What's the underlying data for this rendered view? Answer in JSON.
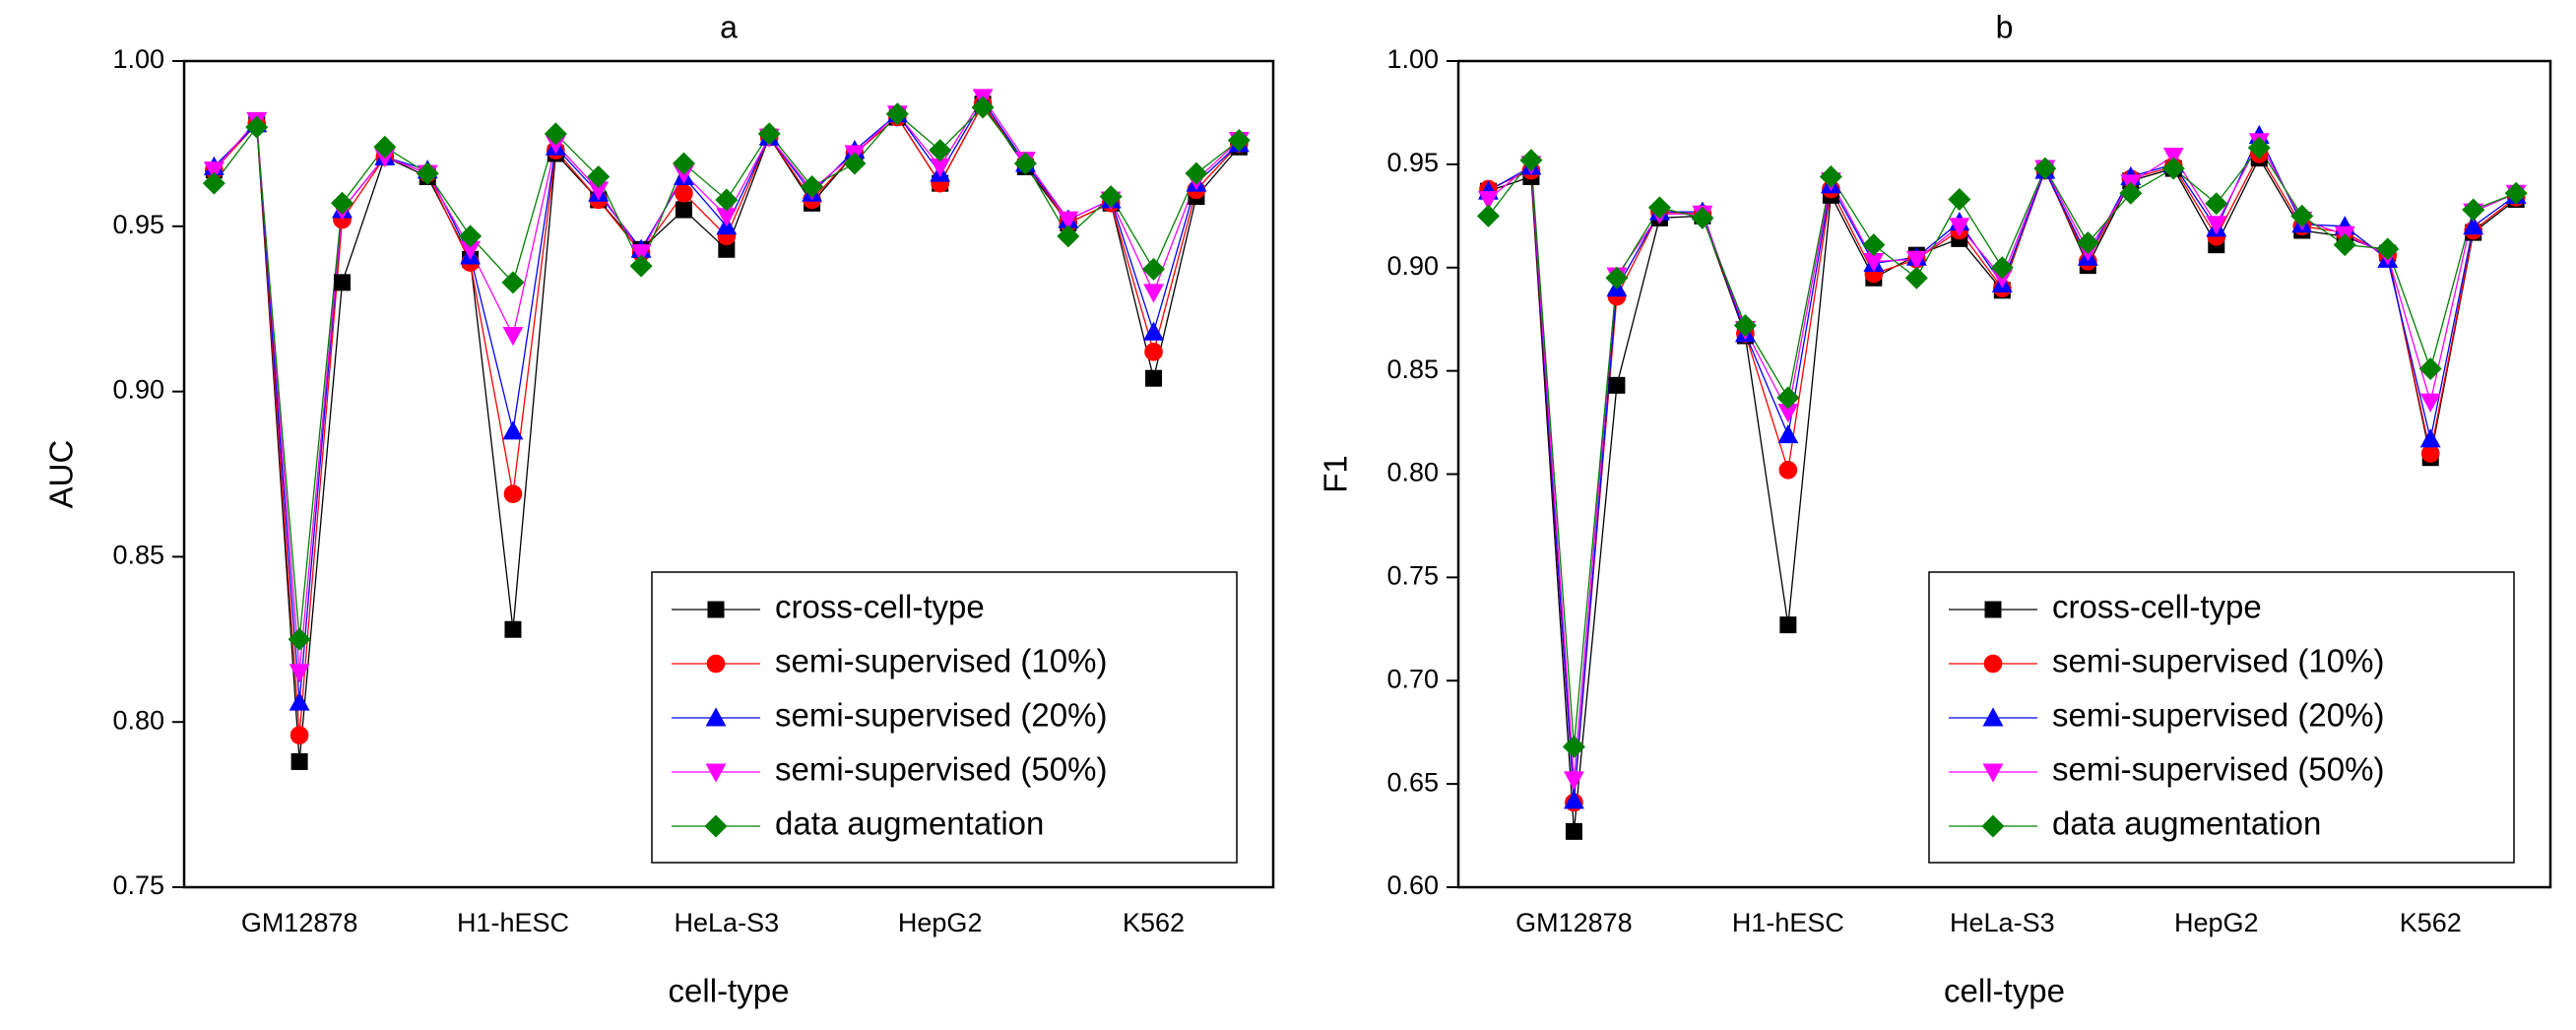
{
  "chart_data": [
    {
      "type": "line",
      "title": "a",
      "xlabel": "cell-type",
      "ylabel": "AUC",
      "categories": [
        null,
        null,
        "GM12878",
        null,
        null,
        null,
        null,
        "H1-hESC",
        null,
        null,
        null,
        null,
        "HeLa-S3",
        null,
        null,
        null,
        null,
        "HepG2",
        null,
        null,
        null,
        null,
        "K562",
        null,
        null
      ],
      "ylim": [
        0.75,
        1.0
      ],
      "yticks": [
        {
          "value": 0.75,
          "label": "0.75"
        },
        {
          "value": 0.8,
          "label": "0.80"
        },
        {
          "value": 0.85,
          "label": "0.85"
        },
        {
          "value": 0.9,
          "label": "0.90"
        },
        {
          "value": 0.95,
          "label": "0.95"
        },
        {
          "value": 1.0,
          "label": "1.00"
        }
      ],
      "legend": "lower right",
      "series": [
        {
          "name": "cross-cell-type",
          "color": "#000000",
          "marker": "square",
          "values": [
            0.967,
            0.981,
            0.788,
            0.933,
            0.971,
            0.965,
            0.94,
            0.828,
            0.972,
            0.958,
            0.943,
            0.955,
            0.943,
            0.977,
            0.957,
            0.972,
            0.983,
            0.963,
            0.987,
            0.968,
            0.951,
            0.957,
            0.904,
            0.959,
            0.974
          ]
        },
        {
          "name": "semi-supervised (10%)",
          "color": "#ff0000",
          "marker": "circle",
          "values": [
            0.967,
            0.981,
            0.796,
            0.952,
            0.971,
            0.966,
            0.939,
            0.869,
            0.973,
            0.958,
            0.942,
            0.96,
            0.947,
            0.977,
            0.958,
            0.972,
            0.983,
            0.963,
            0.987,
            0.969,
            0.951,
            0.957,
            0.912,
            0.961,
            0.975
          ]
        },
        {
          "name": "semi-supervised (20%)",
          "color": "#0000ff",
          "marker": "triangle",
          "values": [
            0.968,
            0.981,
            0.806,
            0.955,
            0.971,
            0.967,
            0.941,
            0.888,
            0.974,
            0.96,
            0.943,
            0.965,
            0.95,
            0.977,
            0.96,
            0.973,
            0.984,
            0.966,
            0.988,
            0.969,
            0.952,
            0.958,
            0.918,
            0.963,
            0.975
          ]
        },
        {
          "name": "semi-supervised (50%)",
          "color": "#ff00ff",
          "marker": "triangle-down",
          "values": [
            0.967,
            0.982,
            0.815,
            0.955,
            0.971,
            0.966,
            0.943,
            0.917,
            0.975,
            0.961,
            0.942,
            0.966,
            0.953,
            0.977,
            0.961,
            0.972,
            0.984,
            0.968,
            0.989,
            0.97,
            0.952,
            0.958,
            0.93,
            0.964,
            0.976
          ]
        },
        {
          "name": "data augmentation",
          "color": "#008000",
          "marker": "diamond",
          "values": [
            0.963,
            0.98,
            0.825,
            0.957,
            0.974,
            0.966,
            0.947,
            0.933,
            0.978,
            0.965,
            0.938,
            0.969,
            0.958,
            0.978,
            0.962,
            0.969,
            0.984,
            0.973,
            0.986,
            0.969,
            0.947,
            0.959,
            0.937,
            0.966,
            0.976
          ]
        }
      ]
    },
    {
      "type": "line",
      "title": "b",
      "xlabel": "cell-type",
      "ylabel": "F1",
      "categories": [
        null,
        null,
        "GM12878",
        null,
        null,
        null,
        null,
        "H1-hESC",
        null,
        null,
        null,
        null,
        "HeLa-S3",
        null,
        null,
        null,
        null,
        "HepG2",
        null,
        null,
        null,
        null,
        "K562",
        null,
        null
      ],
      "ylim": [
        0.6,
        1.0
      ],
      "yticks": [
        {
          "value": 0.6,
          "label": "0.60"
        },
        {
          "value": 0.65,
          "label": "0.65"
        },
        {
          "value": 0.7,
          "label": "0.70"
        },
        {
          "value": 0.75,
          "label": "0.75"
        },
        {
          "value": 0.8,
          "label": "0.80"
        },
        {
          "value": 0.85,
          "label": "0.85"
        },
        {
          "value": 0.9,
          "label": "0.90"
        },
        {
          "value": 0.95,
          "label": "0.95"
        },
        {
          "value": 1.0,
          "label": "1.00"
        }
      ],
      "legend": "lower right",
      "series": [
        {
          "name": "cross-cell-type",
          "color": "#000000",
          "marker": "square",
          "values": [
            0.937,
            0.944,
            0.627,
            0.843,
            0.924,
            0.925,
            0.867,
            0.727,
            0.935,
            0.895,
            0.906,
            0.914,
            0.889,
            0.948,
            0.901,
            0.942,
            0.948,
            0.911,
            0.953,
            0.918,
            0.915,
            0.907,
            0.808,
            0.917,
            0.933
          ]
        },
        {
          "name": "semi-supervised (10%)",
          "color": "#ff0000",
          "marker": "circle",
          "values": [
            0.938,
            0.947,
            0.641,
            0.886,
            0.927,
            0.926,
            0.868,
            0.802,
            0.938,
            0.897,
            0.904,
            0.918,
            0.89,
            0.947,
            0.903,
            0.943,
            0.949,
            0.915,
            0.955,
            0.92,
            0.917,
            0.906,
            0.81,
            0.918,
            0.934
          ]
        },
        {
          "name": "semi-supervised (20%)",
          "color": "#0000ff",
          "marker": "triangle",
          "values": [
            0.937,
            0.949,
            0.642,
            0.89,
            0.927,
            0.927,
            0.868,
            0.819,
            0.94,
            0.902,
            0.905,
            0.922,
            0.892,
            0.947,
            0.905,
            0.944,
            0.95,
            0.919,
            0.964,
            0.921,
            0.92,
            0.904,
            0.817,
            0.92,
            0.935
          ]
        },
        {
          "name": "semi-supervised (50%)",
          "color": "#ff00ff",
          "marker": "triangle-down",
          "values": [
            0.933,
            0.95,
            0.652,
            0.896,
            0.926,
            0.926,
            0.87,
            0.83,
            0.942,
            0.903,
            0.904,
            0.92,
            0.895,
            0.948,
            0.908,
            0.941,
            0.954,
            0.921,
            0.961,
            0.923,
            0.916,
            0.906,
            0.835,
            0.927,
            0.936
          ]
        },
        {
          "name": "data augmentation",
          "color": "#008000",
          "marker": "diamond",
          "values": [
            0.925,
            0.952,
            0.668,
            0.895,
            0.929,
            0.924,
            0.872,
            0.837,
            0.944,
            0.911,
            0.895,
            0.933,
            0.9,
            0.948,
            0.912,
            0.936,
            0.948,
            0.931,
            0.958,
            0.925,
            0.911,
            0.909,
            0.851,
            0.928,
            0.936
          ]
        }
      ]
    }
  ]
}
